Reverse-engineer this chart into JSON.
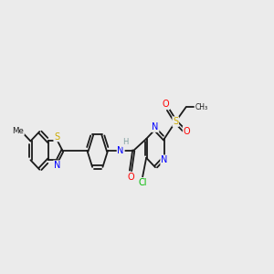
{
  "background_color": "#ebebeb",
  "bond_color": "#1a1a1a",
  "atom_colors": {
    "N": "#0000ff",
    "S": "#ccaa00",
    "O": "#ff0000",
    "Cl": "#00bb00",
    "H": "#7f9f9f"
  },
  "lw": 1.3,
  "ring_r": 0.42,
  "xlim": [
    0,
    11
  ],
  "ylim": [
    2.5,
    8.5
  ]
}
